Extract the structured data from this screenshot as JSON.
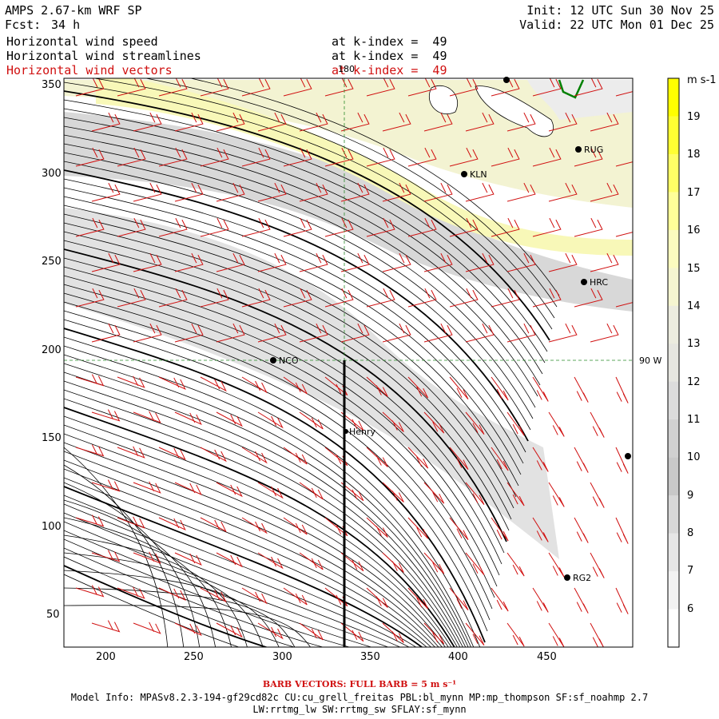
{
  "header": {
    "model_title": "AMPS 2.67-km WRF SP",
    "forecast_label": "Fcst:",
    "forecast_hours": "34 h",
    "init": "Init: 12 UTC Sun 30 Nov 25",
    "valid": "Valid: 22 UTC Mon 01 Dec 25"
  },
  "fields": [
    {
      "name": "Horizontal wind speed",
      "level": "at k-index =  49",
      "color": "#000000"
    },
    {
      "name": "Horizontal wind streamlines",
      "level": "at k-index =  49",
      "color": "#000000"
    },
    {
      "name": "Horizontal wind vectors",
      "level": "at k-index =  49",
      "color": "#d01010"
    }
  ],
  "map": {
    "x_ticks": [
      "200",
      "250",
      "300",
      "350",
      "400",
      "450"
    ],
    "y_ticks": [
      "350",
      "300",
      "250",
      "200",
      "150",
      "100",
      "50"
    ],
    "meridian_label": "180",
    "parallel_label": "90 W",
    "stations": [
      "KLN",
      "RUG",
      "HRC",
      "NCO",
      "Henry",
      "RG2"
    ]
  },
  "colorbar": {
    "unit": "m s-1",
    "labels": [
      "19",
      "18",
      "17",
      "16",
      "15",
      "14",
      "13",
      "12",
      "11",
      "10",
      "9",
      "8",
      "7",
      "6"
    ],
    "colors": [
      "#ffff00",
      "#ffff33",
      "#ffff66",
      "#ffff99",
      "#fbfbbf",
      "#f5f5d0",
      "#ececdf",
      "#e6e6e0",
      "#dcdcdc",
      "#d0d0d0",
      "#c8c8c8",
      "#d8d8d8",
      "#e6e6e6",
      "#f2f2f2",
      "#ffffff"
    ]
  },
  "footer": {
    "barb_note": "BARB VECTORS:  FULL BARB = 5 m s⁻¹",
    "model_info_1": "Model Info: MPASv8.2.3-194-gf29cd82c CU:cu_grell_freitas PBL:bl_mynn MP:mp_thompson SF:sf_noahmp 2.7",
    "model_info_2": "LW:rrtmg_lw SW:rrtmg_sw SFLAY:sf_mynn"
  }
}
